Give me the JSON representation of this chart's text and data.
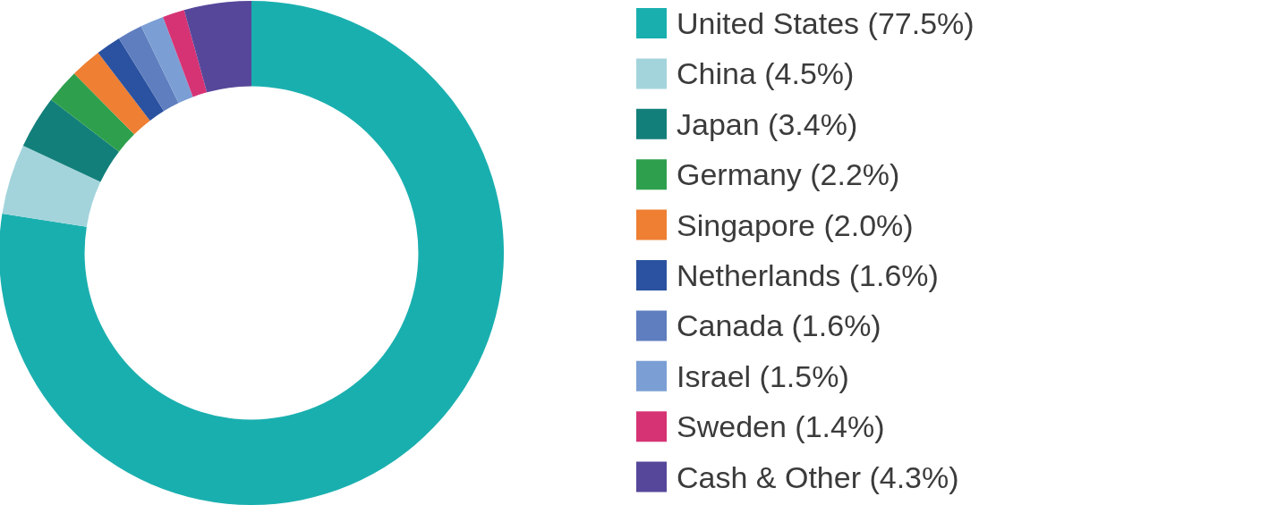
{
  "chart_data": {
    "type": "donut",
    "categories": [
      "United States (77.5%)",
      "China (4.5%)",
      "Japan (3.4%)",
      "Germany (2.2%)",
      "Singapore (2.0%)",
      "Netherlands (1.6%)",
      "Canada (1.6%)",
      "Israel (1.5%)",
      "Sweden (1.4%)",
      "Cash & Other (4.3%)"
    ],
    "values": [
      77.5,
      4.5,
      3.4,
      2.2,
      2.0,
      1.6,
      1.6,
      1.5,
      1.4,
      4.3
    ],
    "colors": [
      "#1aafaf",
      "#a3d4dc",
      "#137f7a",
      "#2ea04d",
      "#ee7f33",
      "#2b52a0",
      "#5f7ebf",
      "#7b9fd4",
      "#d63374",
      "#56479a"
    ],
    "legend": "right"
  }
}
